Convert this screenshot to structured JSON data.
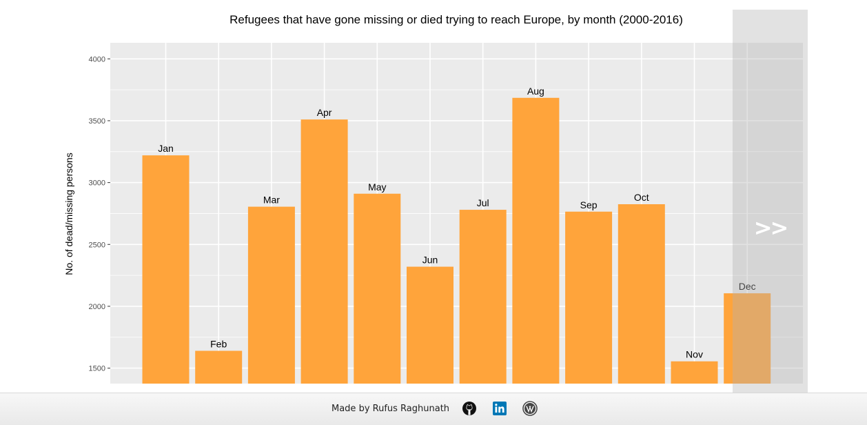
{
  "chart_data": {
    "type": "bar",
    "title": "Refugees that have gone missing or died trying to reach Europe, by month (2000-2016)",
    "xlabel": "",
    "ylabel": "No. of dead/missing persons",
    "categories": [
      "Jan",
      "Feb",
      "Mar",
      "Apr",
      "May",
      "Jun",
      "Jul",
      "Aug",
      "Sep",
      "Oct",
      "Nov",
      "Dec"
    ],
    "values": [
      3220,
      1640,
      2805,
      3510,
      2910,
      2320,
      2780,
      3685,
      2765,
      2825,
      1555,
      2105
    ],
    "ylim": [
      1375,
      4130
    ],
    "yticks": [
      1500,
      2000,
      2500,
      3000,
      3500,
      4000
    ],
    "grid": true,
    "bar_color": "#FFA43B",
    "panel_color": "#EBEBEB",
    "grid_color": "#FFFFFF"
  },
  "nav": {
    "next_label": ">>"
  },
  "footer": {
    "credit": "Made by Rufus Raghunath",
    "icons": [
      "github-icon",
      "linkedin-icon",
      "wordpress-icon"
    ],
    "linkedin_color": "#0077B5"
  }
}
